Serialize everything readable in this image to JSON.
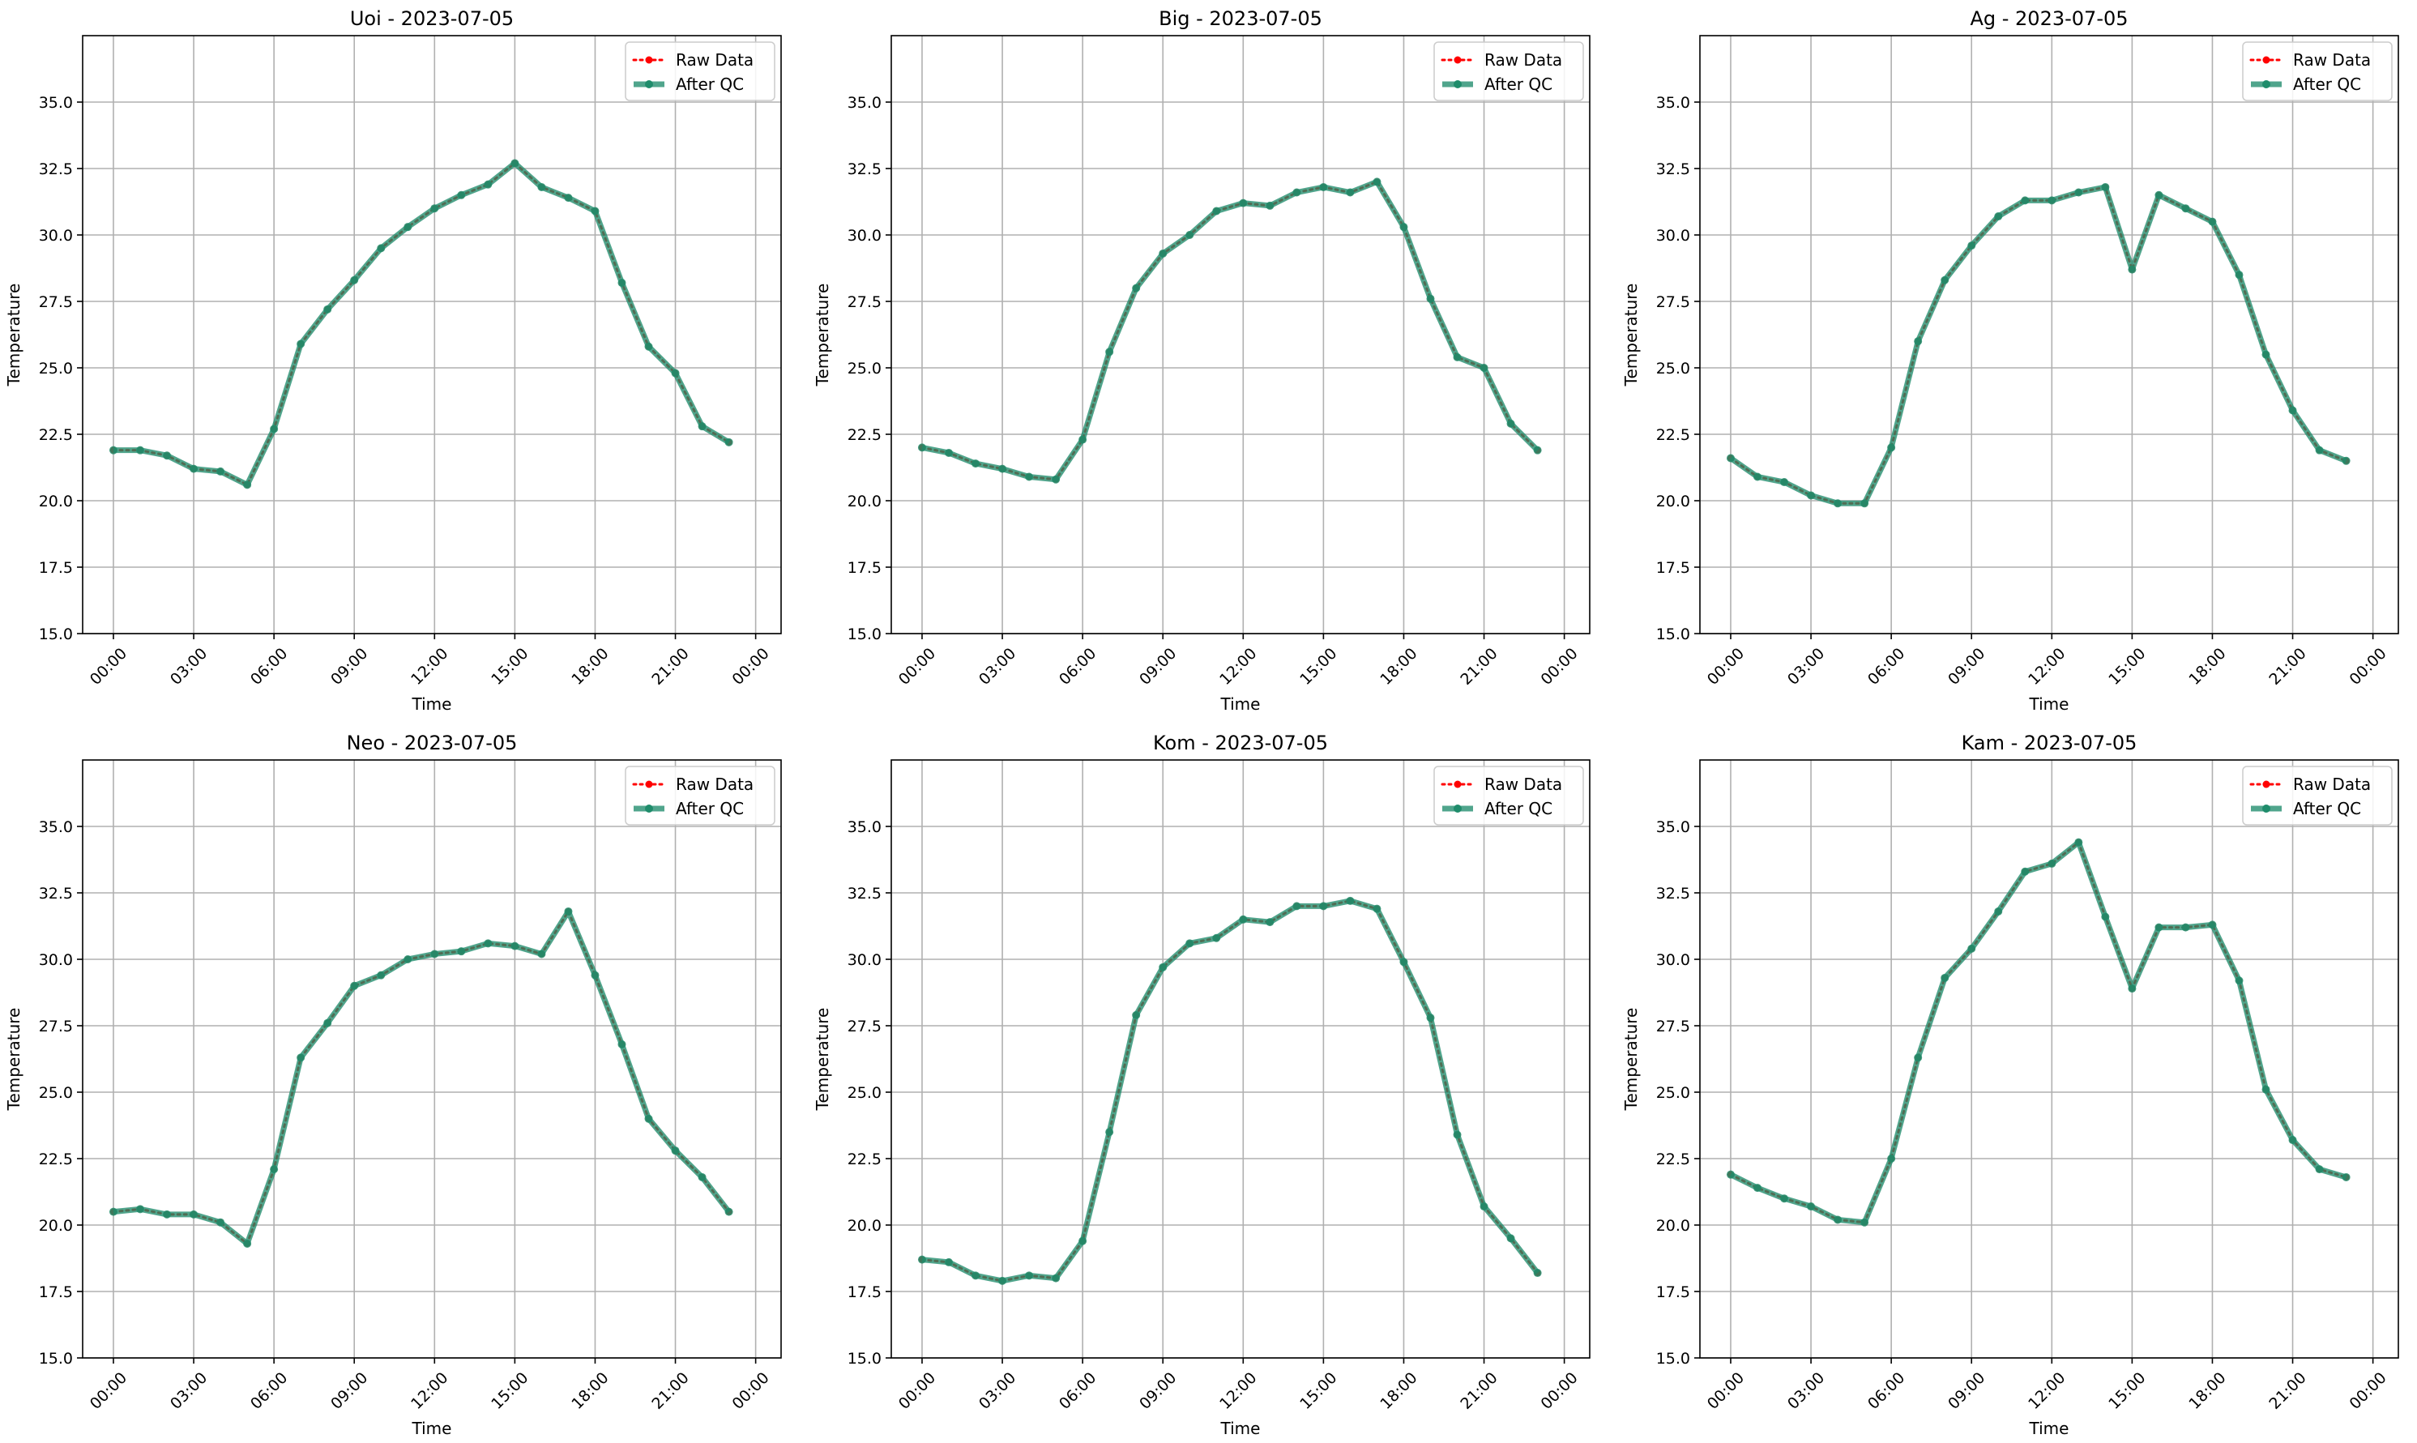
{
  "figure": {
    "title": "",
    "colors": {
      "raw": "#ff0000",
      "qc": "#1f8c6b",
      "grid": "#b0b0b0",
      "axis": "#000000"
    }
  },
  "chart_data": [
    {
      "type": "line",
      "title": "Uoi - 2023-07-05",
      "xlabel": "Time",
      "ylabel": "Temperature",
      "ylim": [
        15.0,
        37.5
      ],
      "yticks": [
        "15.0",
        "17.5",
        "20.0",
        "22.5",
        "25.0",
        "27.5",
        "30.0",
        "32.5",
        "35.0"
      ],
      "xticks": [
        "00:00",
        "03:00",
        "06:00",
        "09:00",
        "12:00",
        "15:00",
        "18:00",
        "21:00",
        "00:00"
      ],
      "x_hours": [
        0,
        1,
        2,
        3,
        4,
        5,
        6,
        7,
        8,
        9,
        10,
        11,
        12,
        13,
        14,
        15,
        16,
        17,
        18,
        19,
        20,
        21,
        22,
        23
      ],
      "legend": [
        "Raw Data",
        "After QC"
      ],
      "legend_position": "upper right",
      "grid": true,
      "series": [
        {
          "name": "Raw Data",
          "values": [
            21.9,
            21.9,
            21.7,
            21.2,
            21.1,
            20.6,
            22.7,
            25.9,
            27.2,
            28.3,
            29.5,
            30.3,
            31.0,
            31.5,
            31.9,
            32.7,
            31.8,
            31.4,
            30.9,
            28.2,
            25.8,
            24.8,
            22.8,
            22.2
          ]
        },
        {
          "name": "After QC",
          "values": [
            21.9,
            21.9,
            21.7,
            21.2,
            21.1,
            20.6,
            22.7,
            25.9,
            27.2,
            28.3,
            29.5,
            30.3,
            31.0,
            31.5,
            31.9,
            32.7,
            31.8,
            31.4,
            30.9,
            28.2,
            25.8,
            24.8,
            22.8,
            22.2
          ]
        }
      ]
    },
    {
      "type": "line",
      "title": "Big - 2023-07-05",
      "xlabel": "Time",
      "ylabel": "Temperature",
      "ylim": [
        15.0,
        37.5
      ],
      "yticks": [
        "15.0",
        "17.5",
        "20.0",
        "22.5",
        "25.0",
        "27.5",
        "30.0",
        "32.5",
        "35.0"
      ],
      "xticks": [
        "00:00",
        "03:00",
        "06:00",
        "09:00",
        "12:00",
        "15:00",
        "18:00",
        "21:00",
        "00:00"
      ],
      "x_hours": [
        0,
        1,
        2,
        3,
        4,
        5,
        6,
        7,
        8,
        9,
        10,
        11,
        12,
        13,
        14,
        15,
        16,
        17,
        18,
        19,
        20,
        21,
        22,
        23
      ],
      "legend": [
        "Raw Data",
        "After QC"
      ],
      "legend_position": "upper right",
      "grid": true,
      "series": [
        {
          "name": "Raw Data",
          "values": [
            22.0,
            21.8,
            21.4,
            21.2,
            20.9,
            20.8,
            22.3,
            25.6,
            28.0,
            29.3,
            30.0,
            30.9,
            31.2,
            31.1,
            31.6,
            31.8,
            31.6,
            32.0,
            30.3,
            27.6,
            25.4,
            25.0,
            22.9,
            21.9
          ]
        },
        {
          "name": "After QC",
          "values": [
            22.0,
            21.8,
            21.4,
            21.2,
            20.9,
            20.8,
            22.3,
            25.6,
            28.0,
            29.3,
            30.0,
            30.9,
            31.2,
            31.1,
            31.6,
            31.8,
            31.6,
            32.0,
            30.3,
            27.6,
            25.4,
            25.0,
            22.9,
            21.9
          ]
        }
      ]
    },
    {
      "type": "line",
      "title": "Ag - 2023-07-05",
      "xlabel": "Time",
      "ylabel": "Temperature",
      "ylim": [
        15.0,
        37.5
      ],
      "yticks": [
        "15.0",
        "17.5",
        "20.0",
        "22.5",
        "25.0",
        "27.5",
        "30.0",
        "32.5",
        "35.0"
      ],
      "xticks": [
        "00:00",
        "03:00",
        "06:00",
        "09:00",
        "12:00",
        "15:00",
        "18:00",
        "21:00",
        "00:00"
      ],
      "x_hours": [
        0,
        1,
        2,
        3,
        4,
        5,
        6,
        7,
        8,
        9,
        10,
        11,
        12,
        13,
        14,
        15,
        16,
        17,
        18,
        19,
        20,
        21,
        22,
        23
      ],
      "legend": [
        "Raw Data",
        "After QC"
      ],
      "legend_position": "upper right",
      "grid": true,
      "series": [
        {
          "name": "Raw Data",
          "values": [
            21.6,
            20.9,
            20.7,
            20.2,
            19.9,
            19.9,
            22.0,
            26.0,
            28.3,
            29.6,
            30.7,
            31.3,
            31.3,
            31.6,
            31.8,
            28.7,
            31.5,
            31.0,
            30.5,
            28.5,
            25.5,
            23.4,
            21.9,
            21.5
          ]
        },
        {
          "name": "After QC",
          "values": [
            21.6,
            20.9,
            20.7,
            20.2,
            19.9,
            19.9,
            22.0,
            26.0,
            28.3,
            29.6,
            30.7,
            31.3,
            31.3,
            31.6,
            31.8,
            28.7,
            31.5,
            31.0,
            30.5,
            28.5,
            25.5,
            23.4,
            21.9,
            21.5
          ]
        }
      ]
    },
    {
      "type": "line",
      "title": "Neo - 2023-07-05",
      "xlabel": "Time",
      "ylabel": "Temperature",
      "ylim": [
        15.0,
        37.5
      ],
      "yticks": [
        "15.0",
        "17.5",
        "20.0",
        "22.5",
        "25.0",
        "27.5",
        "30.0",
        "32.5",
        "35.0"
      ],
      "xticks": [
        "00:00",
        "03:00",
        "06:00",
        "09:00",
        "12:00",
        "15:00",
        "18:00",
        "21:00",
        "00:00"
      ],
      "x_hours": [
        0,
        1,
        2,
        3,
        4,
        5,
        6,
        7,
        8,
        9,
        10,
        11,
        12,
        13,
        14,
        15,
        16,
        17,
        18,
        19,
        20,
        21,
        22,
        23
      ],
      "legend": [
        "Raw Data",
        "After QC"
      ],
      "legend_position": "upper right",
      "grid": true,
      "series": [
        {
          "name": "Raw Data",
          "values": [
            20.5,
            20.6,
            20.4,
            20.4,
            20.1,
            19.3,
            22.1,
            26.3,
            27.6,
            29.0,
            29.4,
            30.0,
            30.2,
            30.3,
            30.6,
            30.5,
            30.2,
            31.8,
            29.4,
            26.8,
            24.0,
            22.8,
            21.8,
            20.5
          ]
        },
        {
          "name": "After QC",
          "values": [
            20.5,
            20.6,
            20.4,
            20.4,
            20.1,
            19.3,
            22.1,
            26.3,
            27.6,
            29.0,
            29.4,
            30.0,
            30.2,
            30.3,
            30.6,
            30.5,
            30.2,
            31.8,
            29.4,
            26.8,
            24.0,
            22.8,
            21.8,
            20.5
          ]
        }
      ]
    },
    {
      "type": "line",
      "title": "Kom - 2023-07-05",
      "xlabel": "Time",
      "ylabel": "Temperature",
      "ylim": [
        15.0,
        37.5
      ],
      "yticks": [
        "15.0",
        "17.5",
        "20.0",
        "22.5",
        "25.0",
        "27.5",
        "30.0",
        "32.5",
        "35.0"
      ],
      "xticks": [
        "00:00",
        "03:00",
        "06:00",
        "09:00",
        "12:00",
        "15:00",
        "18:00",
        "21:00",
        "00:00"
      ],
      "x_hours": [
        0,
        1,
        2,
        3,
        4,
        5,
        6,
        7,
        8,
        9,
        10,
        11,
        12,
        13,
        14,
        15,
        16,
        17,
        18,
        19,
        20,
        21,
        22,
        23
      ],
      "legend": [
        "Raw Data",
        "After QC"
      ],
      "legend_position": "upper right",
      "grid": true,
      "series": [
        {
          "name": "Raw Data",
          "values": [
            18.7,
            18.6,
            18.1,
            17.9,
            18.1,
            18.0,
            19.4,
            23.5,
            27.9,
            29.7,
            30.6,
            30.8,
            31.5,
            31.4,
            32.0,
            32.0,
            32.2,
            31.9,
            29.9,
            27.8,
            23.4,
            20.7,
            19.5,
            18.2
          ]
        },
        {
          "name": "After QC",
          "values": [
            18.7,
            18.6,
            18.1,
            17.9,
            18.1,
            18.0,
            19.4,
            23.5,
            27.9,
            29.7,
            30.6,
            30.8,
            31.5,
            31.4,
            32.0,
            32.0,
            32.2,
            31.9,
            29.9,
            27.8,
            23.4,
            20.7,
            19.5,
            18.2
          ]
        }
      ]
    },
    {
      "type": "line",
      "title": "Kam - 2023-07-05",
      "xlabel": "Time",
      "ylabel": "Temperature",
      "ylim": [
        15.0,
        37.5
      ],
      "yticks": [
        "15.0",
        "17.5",
        "20.0",
        "22.5",
        "25.0",
        "27.5",
        "30.0",
        "32.5",
        "35.0"
      ],
      "xticks": [
        "00:00",
        "03:00",
        "06:00",
        "09:00",
        "12:00",
        "15:00",
        "18:00",
        "21:00",
        "00:00"
      ],
      "x_hours": [
        0,
        1,
        2,
        3,
        4,
        5,
        6,
        7,
        8,
        9,
        10,
        11,
        12,
        13,
        14,
        15,
        16,
        17,
        18,
        19,
        20,
        21,
        22,
        23
      ],
      "legend": [
        "Raw Data",
        "After QC"
      ],
      "legend_position": "upper right",
      "grid": true,
      "series": [
        {
          "name": "Raw Data",
          "values": [
            21.9,
            21.4,
            21.0,
            20.7,
            20.2,
            20.1,
            22.5,
            26.3,
            29.3,
            30.4,
            31.8,
            33.3,
            33.6,
            34.4,
            31.6,
            28.9,
            31.2,
            31.2,
            31.3,
            29.2,
            25.1,
            23.2,
            22.1,
            21.8
          ]
        },
        {
          "name": "After QC",
          "values": [
            21.9,
            21.4,
            21.0,
            20.7,
            20.2,
            20.1,
            22.5,
            26.3,
            29.3,
            30.4,
            31.8,
            33.3,
            33.6,
            34.4,
            31.6,
            28.9,
            31.2,
            31.2,
            31.3,
            29.2,
            25.1,
            23.2,
            22.1,
            21.8
          ]
        }
      ]
    }
  ]
}
